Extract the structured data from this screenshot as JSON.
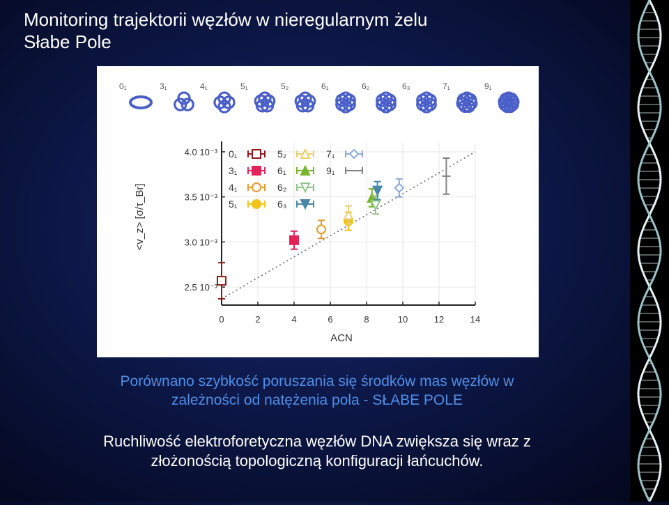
{
  "title": {
    "line1": "Monitoring trajektorii węzłów w nieregularnym żelu",
    "line2": "Słabe Pole"
  },
  "knot_row": [
    "0₁",
    "3₁",
    "4₁",
    "5₁",
    "5₂",
    "6₁",
    "6₂",
    "6₃",
    "7₁",
    "9₁"
  ],
  "chart_data": {
    "type": "scatter",
    "xlabel": "ACN",
    "ylabel": "<v_z> [σ/τ_Br]",
    "xlim": [
      0,
      14
    ],
    "ylim": [
      0.0023,
      0.0041
    ],
    "x_ticks": [
      "0",
      "2",
      "4",
      "6",
      "8",
      "10",
      "12",
      "14"
    ],
    "y_ticks": [
      {
        "value": 0.0025,
        "label": "2.5 10⁻³"
      },
      {
        "value": 0.003,
        "label": "3.0 10⁻³"
      },
      {
        "value": 0.0035,
        "label": "3.5 10⁻³"
      },
      {
        "value": 0.004,
        "label": "4.0 10⁻³"
      }
    ],
    "grid": true,
    "legend_position": "top-left",
    "trend_line": {
      "style": "dotted",
      "from": [
        0,
        0.00237
      ],
      "to": [
        14,
        0.004
      ]
    },
    "series": [
      {
        "name": "0₁",
        "x": 0,
        "y": 0.00257,
        "yerr": 0.0002,
        "marker": "square-open",
        "color": "#8b1a1a"
      },
      {
        "name": "3₁",
        "x": 4,
        "y": 0.00302,
        "yerr": 0.0001,
        "marker": "square-filled",
        "color": "#e0245a"
      },
      {
        "name": "4₁",
        "x": 5.5,
        "y": 0.00314,
        "yerr": 0.0001,
        "marker": "circle-open",
        "color": "#e89a2a"
      },
      {
        "name": "5₁",
        "x": 7,
        "y": 0.00323,
        "yerr": 0.0001,
        "marker": "circle-filled",
        "color": "#f2c318"
      },
      {
        "name": "5₂",
        "x": 7,
        "y": 0.0033,
        "yerr": 0.0001,
        "marker": "triangle-open",
        "color": "#eccf6e"
      },
      {
        "name": "6₁",
        "x": 8.3,
        "y": 0.00349,
        "yerr": 0.0001,
        "marker": "triangle-filled",
        "color": "#79b52d"
      },
      {
        "name": "6₂",
        "x": 8.5,
        "y": 0.00341,
        "yerr": 0.0001,
        "marker": "triangle-down-open",
        "color": "#8fc78a"
      },
      {
        "name": "6₃",
        "x": 8.6,
        "y": 0.00357,
        "yerr": 0.0001,
        "marker": "triangle-down-filled",
        "color": "#4a88a8"
      },
      {
        "name": "7₁",
        "x": 9.8,
        "y": 0.0036,
        "yerr": 0.0001,
        "marker": "diamond-open",
        "color": "#8aa8d8"
      },
      {
        "name": "9₁",
        "x": 12.4,
        "y": 0.00373,
        "yerr": 0.0002,
        "marker": "errorbar-only",
        "color": "#808080"
      }
    ]
  },
  "caption1": {
    "line1": "Porównano szybkość poruszania się środków mas węzłów w",
    "line2": "zależności od natężenia pola  - SŁABE POLE"
  },
  "caption2": {
    "line1": "Ruchliwość elektroforetyczna węzłów DNA zwiększa się wraz z",
    "line2": "złożonością topologiczną konfiguracji łańcuchów."
  },
  "colors": {
    "background": "#0d1848",
    "caption_blue": "#4f8fe8",
    "knot_blue": "#4a5fc8"
  }
}
